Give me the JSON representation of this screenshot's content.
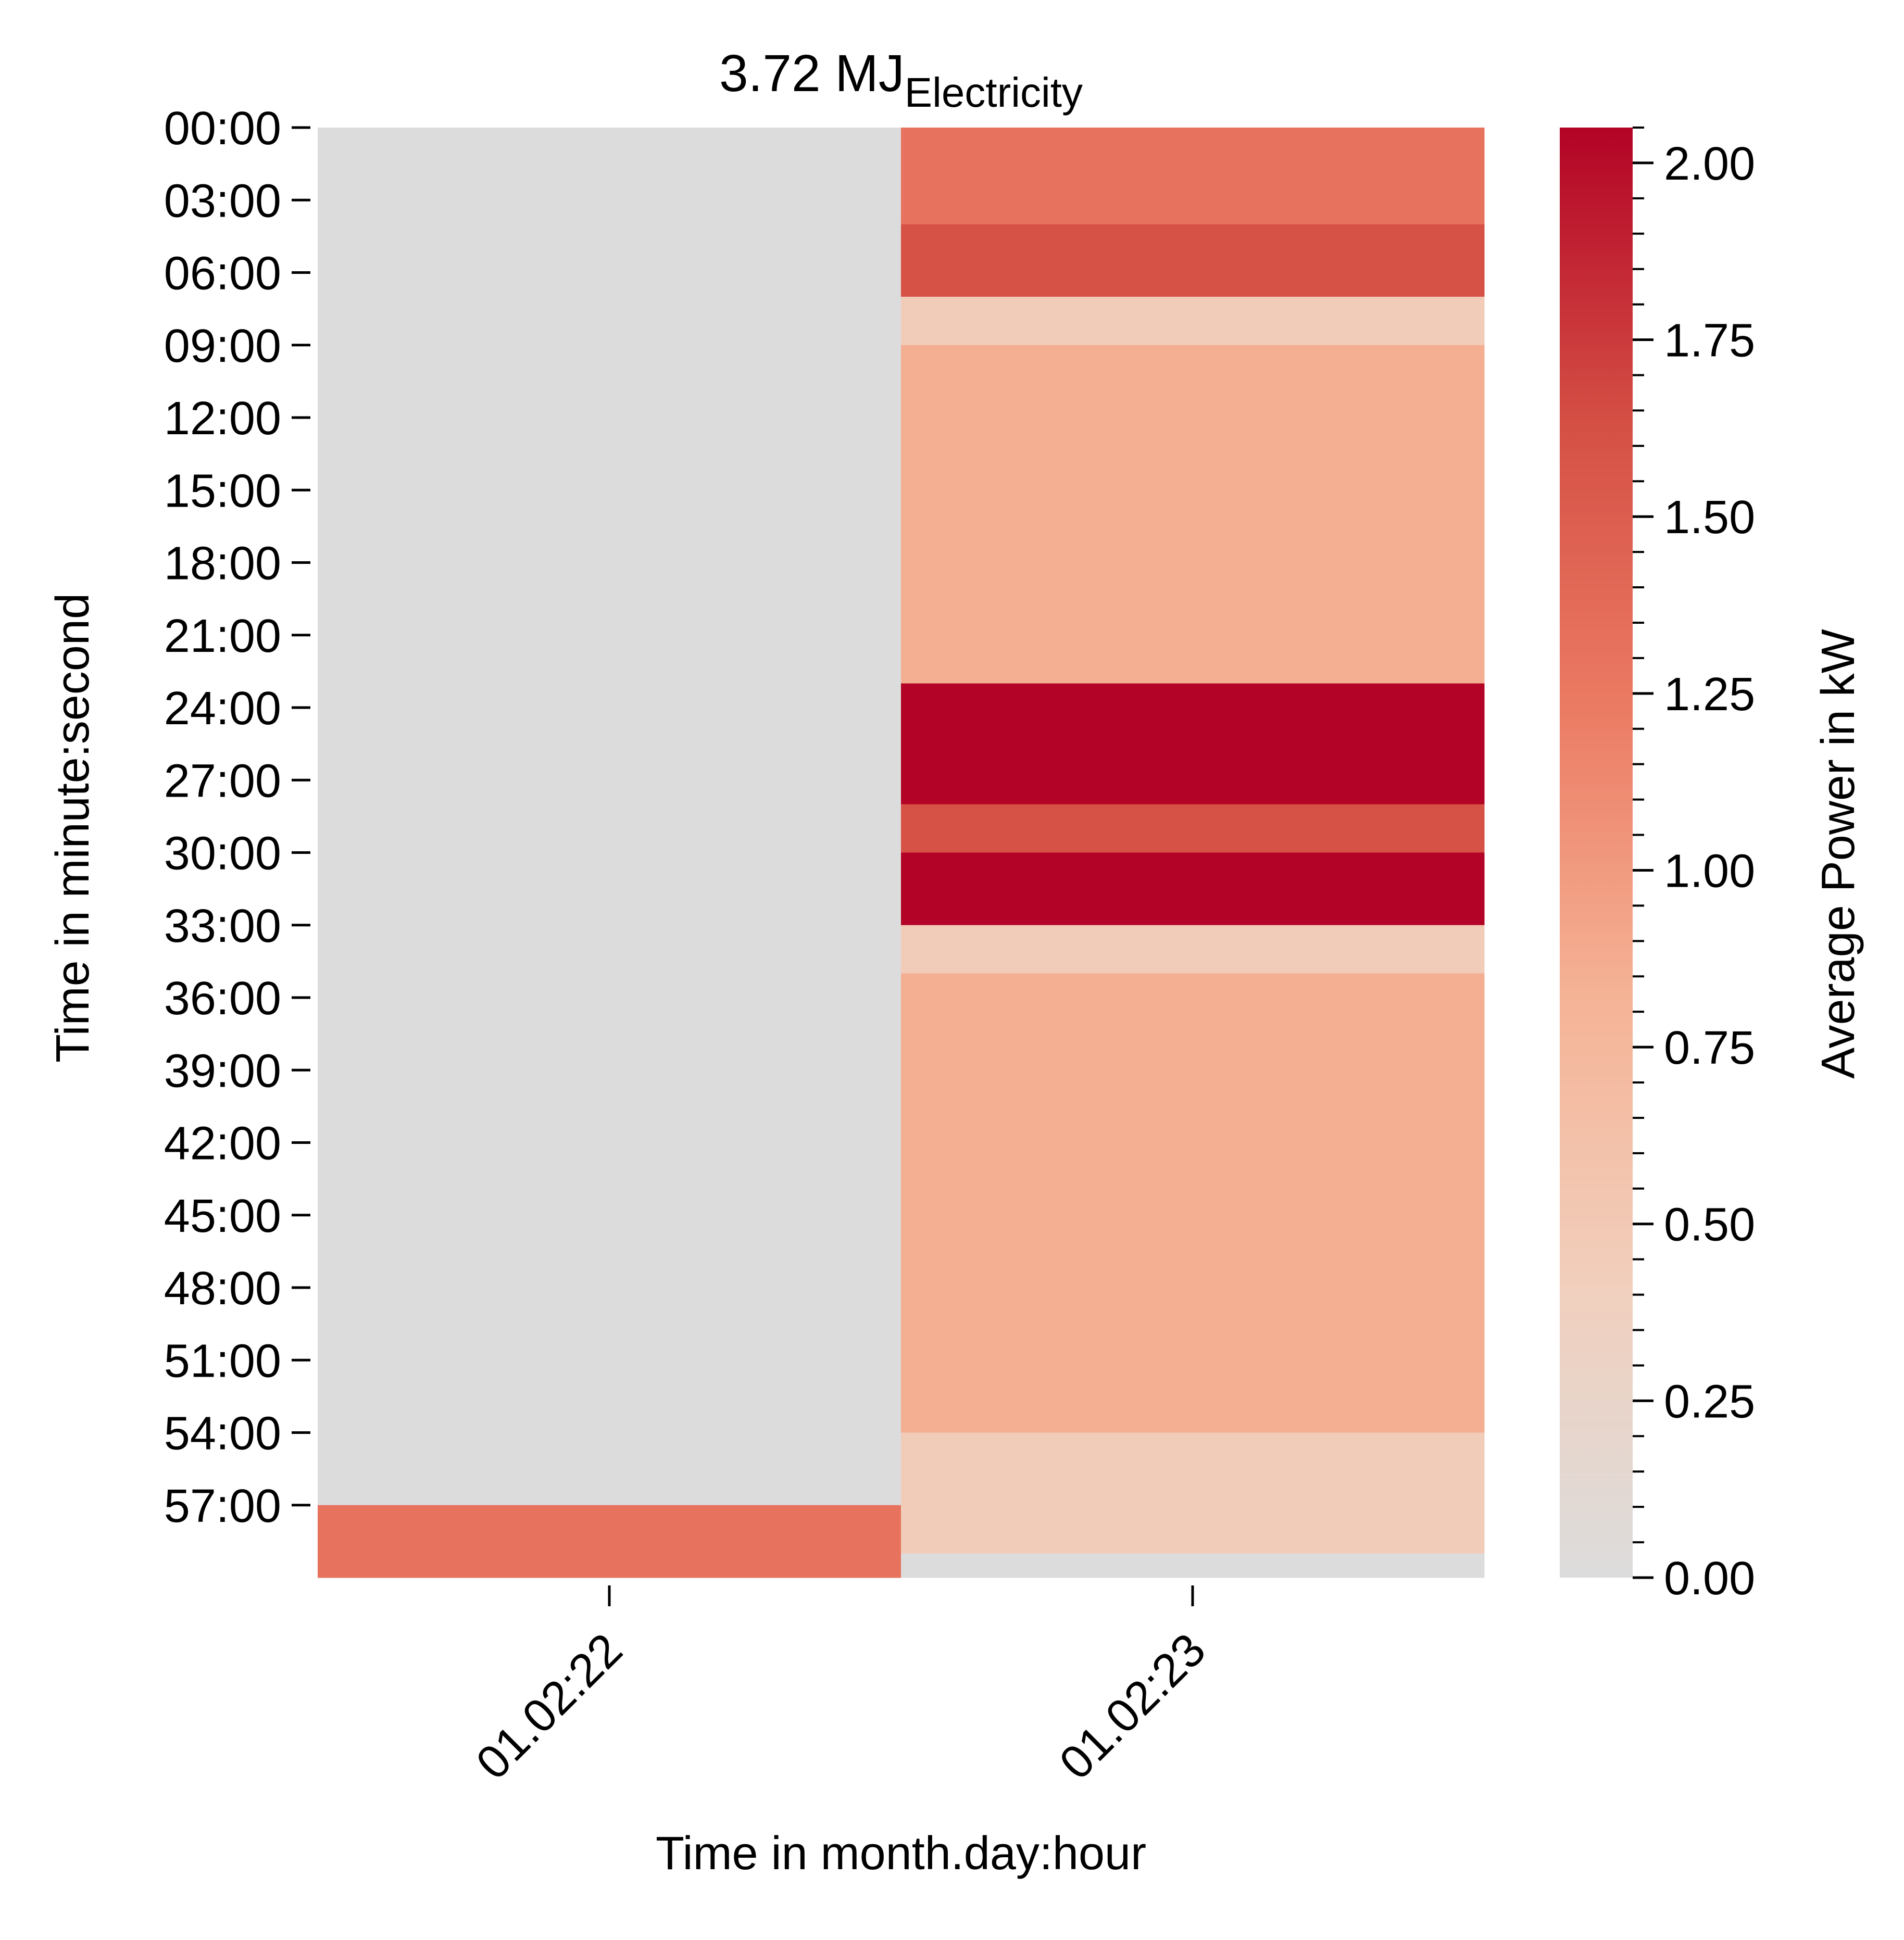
{
  "chart_data": {
    "type": "heatmap",
    "title": "3.72 MJ",
    "title_subscript": "Electricity",
    "xlabel": "Time in month.day:hour",
    "ylabel": "Time in minute:second",
    "colorbar_label": "Average Power in kW",
    "x_categories": [
      "01.02:22",
      "01.02:23"
    ],
    "y_tick_labels": [
      "00:00",
      "03:00",
      "06:00",
      "09:00",
      "12:00",
      "15:00",
      "18:00",
      "21:00",
      "24:00",
      "27:00",
      "30:00",
      "33:00",
      "36:00",
      "39:00",
      "42:00",
      "45:00",
      "48:00",
      "51:00",
      "54:00",
      "57:00"
    ],
    "y_range_minutes": [
      0,
      60
    ],
    "column_segments": [
      [
        {
          "start_min": 0,
          "end_min": 57,
          "value_kw": 0.0
        },
        {
          "start_min": 57,
          "end_min": 60,
          "value_kw": 1.3
        }
      ],
      [
        {
          "start_min": 0,
          "end_min": 4,
          "value_kw": 1.3
        },
        {
          "start_min": 4,
          "end_min": 7,
          "value_kw": 1.6
        },
        {
          "start_min": 7,
          "end_min": 9,
          "value_kw": 0.45
        },
        {
          "start_min": 9,
          "end_min": 23,
          "value_kw": 0.85
        },
        {
          "start_min": 23,
          "end_min": 28,
          "value_kw": 2.05
        },
        {
          "start_min": 28,
          "end_min": 30,
          "value_kw": 1.6
        },
        {
          "start_min": 30,
          "end_min": 33,
          "value_kw": 2.05
        },
        {
          "start_min": 33,
          "end_min": 35,
          "value_kw": 0.45
        },
        {
          "start_min": 35,
          "end_min": 54,
          "value_kw": 0.85
        },
        {
          "start_min": 54,
          "end_min": 59,
          "value_kw": 0.45
        },
        {
          "start_min": 59,
          "end_min": 60,
          "value_kw": 0.0
        }
      ]
    ],
    "colorbar": {
      "range": [
        0,
        2.05
      ],
      "ticks": [
        0.0,
        0.25,
        0.5,
        0.75,
        1.0,
        1.25,
        1.5,
        1.75,
        2.0
      ],
      "tick_labels": [
        "0.00",
        "0.25",
        "0.50",
        "0.75",
        "1.00",
        "1.25",
        "1.50",
        "1.75",
        "2.00"
      ],
      "minor_step": 0.05,
      "colors": [
        "#dcdcdc",
        "#f1cfbd",
        "#f5b396",
        "#eb7b63",
        "#d44e44",
        "#b30326"
      ]
    },
    "grid": false
  }
}
